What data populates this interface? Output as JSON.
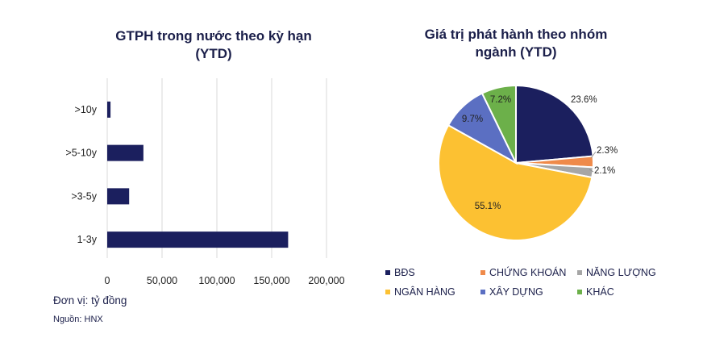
{
  "chart_data": [
    {
      "type": "bar",
      "orientation": "horizontal",
      "title": "GTPH trong nước theo kỳ hạn (YTD)",
      "categories": [
        ">10y",
        ">5-10y",
        ">3-5y",
        "1-3y"
      ],
      "values": [
        3000,
        33000,
        20000,
        165000
      ],
      "xlim": [
        0,
        200000
      ],
      "xticks": [
        "0",
        "50,000",
        "100,000",
        "150,000",
        "200,000"
      ],
      "xtick_values": [
        0,
        50000,
        100000,
        150000,
        200000
      ],
      "grid": true,
      "color": "#1b1f5e"
    },
    {
      "type": "pie",
      "title": "Giá trị phát hành theo nhóm ngành (YTD)",
      "slices": [
        {
          "name": "BĐS",
          "value": 23.6,
          "label": "23.6%",
          "color": "#1b1f5e"
        },
        {
          "name": "CHỨNG KHOÁN",
          "value": 2.3,
          "label": "2.3%",
          "color": "#ef8a4a"
        },
        {
          "name": "NĂNG LƯỢNG",
          "value": 2.1,
          "label": "2.1%",
          "color": "#a6a6a6"
        },
        {
          "name": "NGÂN HÀNG",
          "value": 55.1,
          "label": "55.1%",
          "color": "#fcc132"
        },
        {
          "name": "XÂY DỰNG",
          "value": 9.7,
          "label": "9.7%",
          "color": "#5b6fc2"
        },
        {
          "name": "KHÁC",
          "value": 7.2,
          "label": "7.2%",
          "color": "#6cb04a"
        }
      ],
      "legend_position": "bottom"
    }
  ],
  "titles": {
    "bar_line1": "GTPH trong nước theo kỳ hạn",
    "bar_line2": "(YTD)",
    "pie_line1": "Giá trị phát hành theo nhóm",
    "pie_line2": "ngành (YTD)"
  },
  "notes": {
    "unit": "Đơn vị: tỷ đồng",
    "source": "Nguồn: HNX"
  }
}
